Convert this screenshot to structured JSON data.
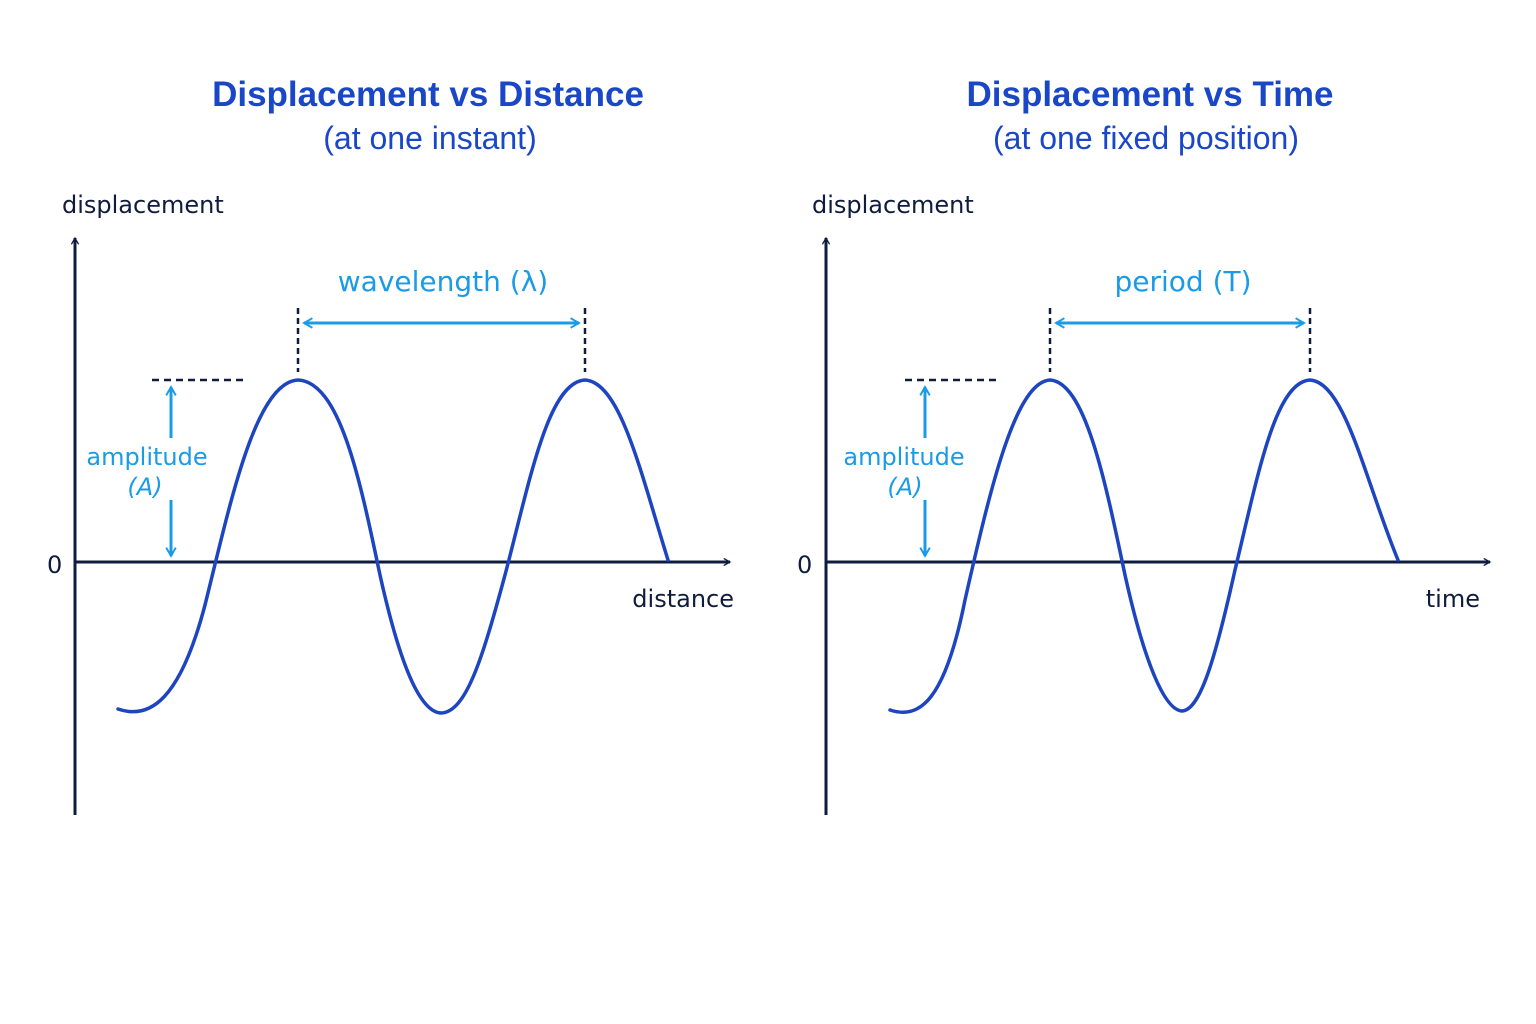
{
  "colors": {
    "title": "#1a47c8",
    "axis": "#0f1c3d",
    "wave": "#1e45c0",
    "annotation": "#1a9be8"
  },
  "panels": [
    {
      "title": "Displacement vs Distance",
      "subtitle": "(at one instant)",
      "y_axis_label": "displacement",
      "origin_label": "0",
      "x_axis_label": "distance",
      "span_label": "wavelength (λ)",
      "amplitude_label": "amplitude",
      "amplitude_symbol": "(A)"
    },
    {
      "title": "Displacement vs Time",
      "subtitle": "(at one fixed position)",
      "y_axis_label": "displacement",
      "origin_label": "0",
      "x_axis_label": "time",
      "span_label": "period (T)",
      "amplitude_label": "amplitude",
      "amplitude_symbol": "(A)"
    }
  ]
}
